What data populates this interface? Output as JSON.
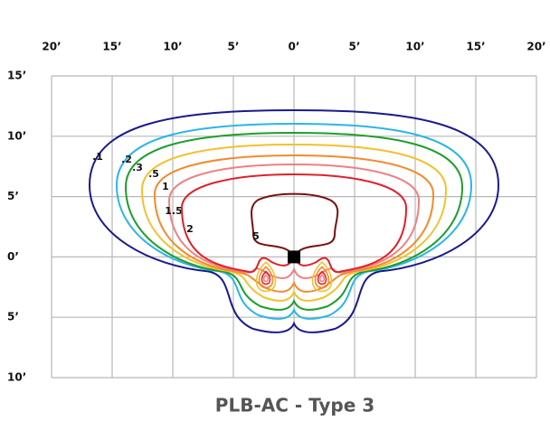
{
  "chart_data": {
    "type": "contour",
    "title": "PLB-AC - Type 3",
    "xlim": [
      -20,
      20
    ],
    "ylim": [
      -10,
      15
    ],
    "xticks": [
      {
        "value": -20,
        "label": "20’"
      },
      {
        "value": -15,
        "label": "15’"
      },
      {
        "value": -10,
        "label": "10’"
      },
      {
        "value": -5,
        "label": "5’"
      },
      {
        "value": 0,
        "label": "0’"
      },
      {
        "value": 5,
        "label": "5’"
      },
      {
        "value": 10,
        "label": "10’"
      },
      {
        "value": 15,
        "label": "15’"
      },
      {
        "value": 20,
        "label": "20’"
      }
    ],
    "yticks": [
      {
        "value": 15,
        "label": "15’"
      },
      {
        "value": 10,
        "label": "10’"
      },
      {
        "value": 5,
        "label": "5’"
      },
      {
        "value": 0,
        "label": "0’"
      },
      {
        "value": -5,
        "label": "5’"
      },
      {
        "value": -10,
        "label": "10’"
      }
    ],
    "grid": true,
    "levels": [
      {
        "value": 0.1,
        "label": ".1",
        "color": "#1a1a8c"
      },
      {
        "value": 0.2,
        "label": ".2",
        "color": "#29b6e8"
      },
      {
        "value": 0.3,
        "label": ".3",
        "color": "#1e9e2a"
      },
      {
        "value": 0.5,
        "label": ".5",
        "color": "#f2c12e"
      },
      {
        "value": 1,
        "label": "1",
        "color": "#f38b2a"
      },
      {
        "value": 1.5,
        "label": "1.5",
        "color": "#f08080"
      },
      {
        "value": 2,
        "label": "2",
        "color": "#e0202a"
      },
      {
        "value": 5,
        "label": "5",
        "color": "#7a1010"
      }
    ]
  }
}
